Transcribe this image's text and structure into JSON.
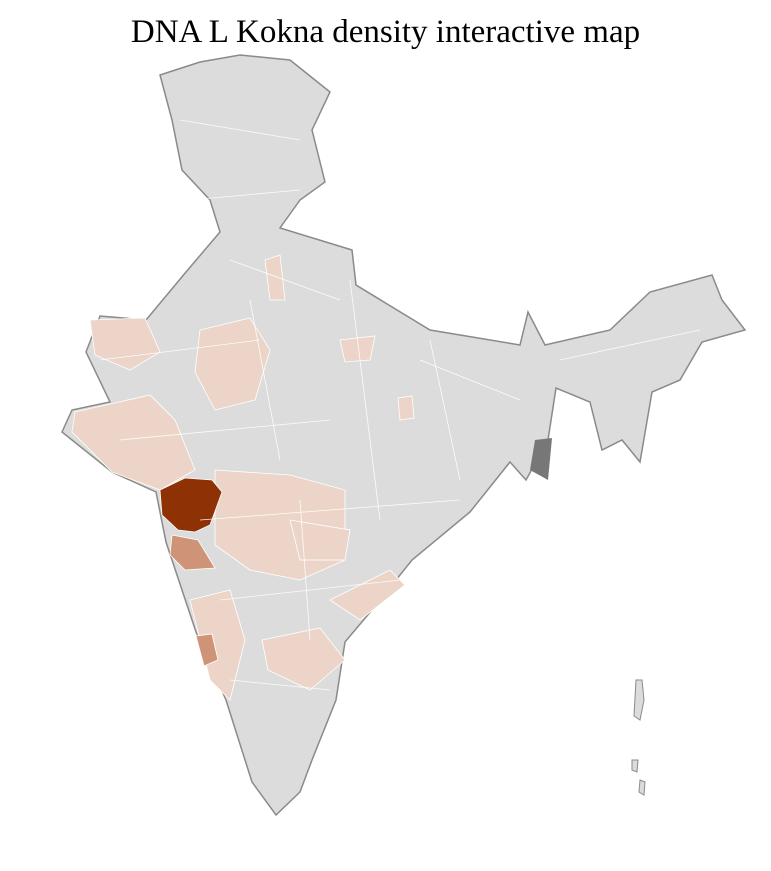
{
  "title": "DNA L Kokna density interactive map",
  "colors": {
    "no_data": "#dcdcdc",
    "border": "#8a8a8a",
    "district_line": "#ffffff",
    "low": "#ecd5c8",
    "medium": "#cf9478",
    "high": "#8e3206"
  }
}
